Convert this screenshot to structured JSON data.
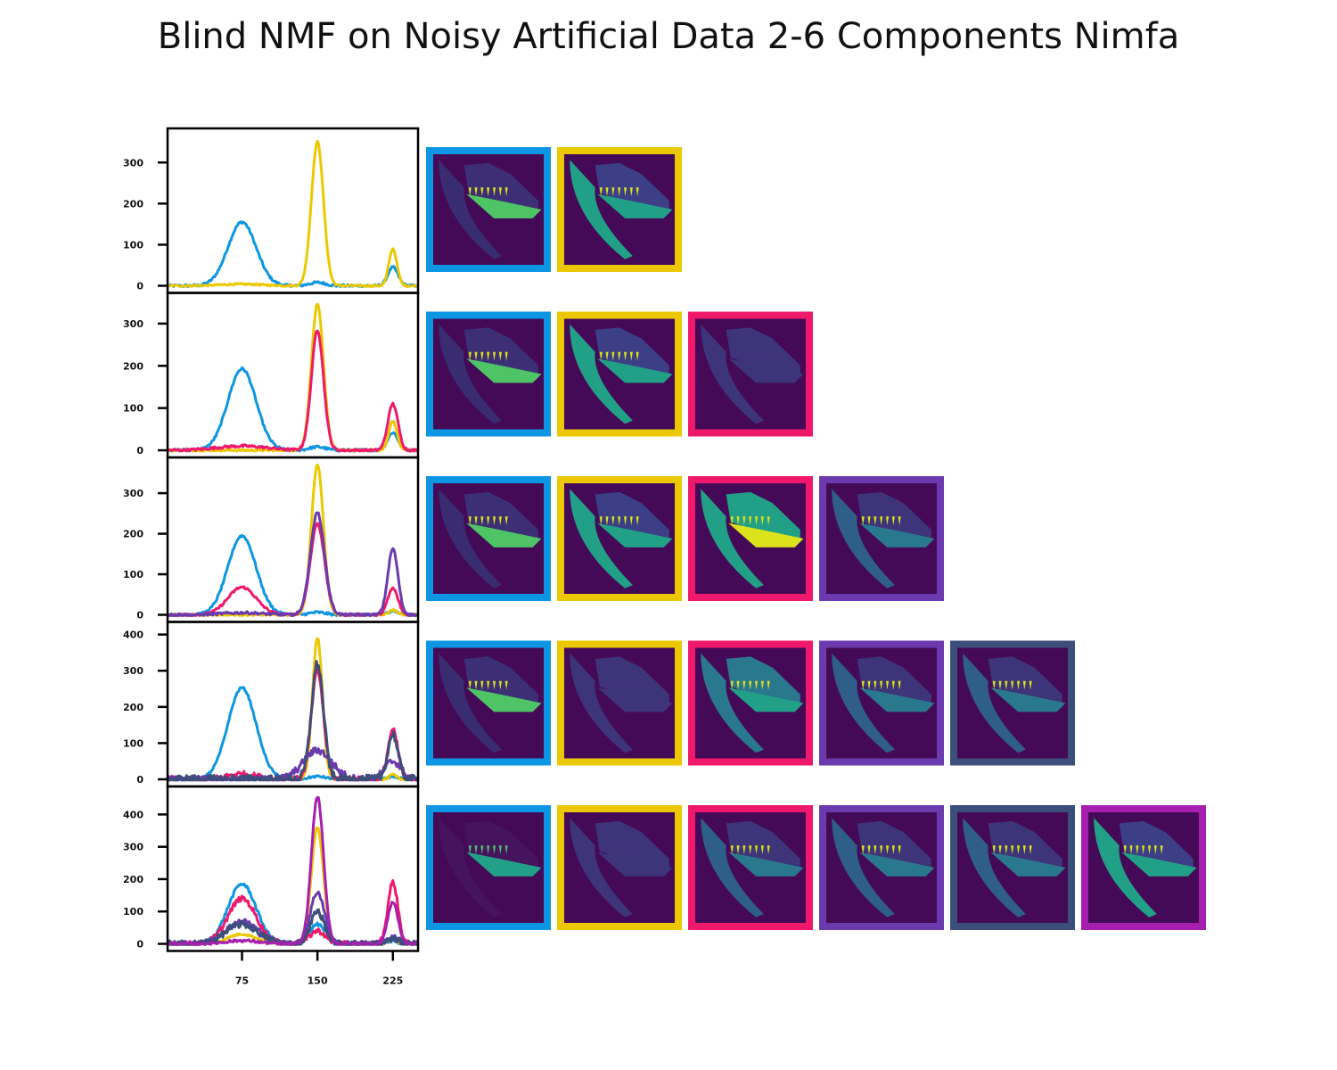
{
  "title": "Blind NMF on Noisy Artificial Data 2-6 Components Nimfa",
  "colors": {
    "blue": "#0d96e3",
    "yellow": "#ecc800",
    "red": "#f0186a",
    "purple": "#6a3aae",
    "slate": "#3c4e7a",
    "magenta": "#a61fb0",
    "bg_dark": "#440a57",
    "body_dim": "#3c2e72",
    "jaw_green": "#4ec466",
    "teal": "#22a087",
    "bright_yellow": "#dde31a"
  },
  "chart_data": [
    {
      "type": "line",
      "components": 2,
      "x_domain": [
        1,
        250
      ],
      "xticks": [
        75,
        150,
        225
      ],
      "ylim": [
        0,
        370
      ],
      "yticks": [
        0,
        100,
        200,
        300
      ],
      "series": [
        {
          "color": "blue",
          "peaks": [
            [
              75,
              155,
              14
            ],
            [
              150,
              8,
              8
            ],
            [
              225,
              45,
              5
            ]
          ],
          "noise": 3
        },
        {
          "color": "yellow",
          "peaks": [
            [
              75,
              4,
              20
            ],
            [
              150,
              350,
              6
            ],
            [
              225,
              90,
              4
            ]
          ],
          "noise": 2
        }
      ],
      "images": [
        {
          "border": "blue",
          "style": "jaw"
        },
        {
          "border": "yellow",
          "style": "body"
        }
      ]
    },
    {
      "type": "line",
      "components": 3,
      "x_domain": [
        1,
        250
      ],
      "ylim": [
        0,
        360
      ],
      "yticks": [
        0,
        100,
        200,
        300
      ],
      "series": [
        {
          "color": "blue",
          "peaks": [
            [
              75,
              193,
              14
            ],
            [
              150,
              8,
              8
            ],
            [
              225,
              42,
              5
            ]
          ],
          "noise": 3
        },
        {
          "color": "yellow",
          "peaks": [
            [
              150,
              345,
              6
            ],
            [
              225,
              70,
              4
            ]
          ],
          "noise": 2
        },
        {
          "color": "red",
          "peaks": [
            [
              75,
              10,
              25
            ],
            [
              150,
              285,
              6
            ],
            [
              225,
              110,
              5
            ]
          ],
          "noise": 3
        }
      ],
      "images": [
        {
          "border": "blue",
          "style": "jaw"
        },
        {
          "border": "yellow",
          "style": "body"
        },
        {
          "border": "red",
          "style": "dim"
        }
      ]
    },
    {
      "type": "line",
      "components": 4,
      "x_domain": [
        1,
        250
      ],
      "ylim": [
        0,
        375
      ],
      "yticks": [
        0,
        100,
        200,
        300
      ],
      "series": [
        {
          "color": "blue",
          "peaks": [
            [
              75,
              195,
              14
            ],
            [
              150,
              6,
              8
            ],
            [
              225,
              10,
              5
            ]
          ],
          "noise": 3
        },
        {
          "color": "yellow",
          "peaks": [
            [
              150,
              370,
              6
            ],
            [
              225,
              12,
              4
            ]
          ],
          "noise": 2
        },
        {
          "color": "red",
          "peaks": [
            [
              75,
              68,
              14
            ],
            [
              150,
              225,
              7
            ],
            [
              225,
              65,
              5
            ]
          ],
          "noise": 3
        },
        {
          "color": "purple",
          "peaks": [
            [
              75,
              5,
              20
            ],
            [
              150,
              252,
              7
            ],
            [
              225,
              163,
              5
            ]
          ],
          "noise": 3
        }
      ],
      "images": [
        {
          "border": "blue",
          "style": "jaw"
        },
        {
          "border": "yellow",
          "style": "body"
        },
        {
          "border": "red",
          "style": "full"
        },
        {
          "border": "purple",
          "style": "teeth"
        }
      ]
    },
    {
      "type": "line",
      "components": 5,
      "x_domain": [
        1,
        250
      ],
      "ylim": [
        0,
        420
      ],
      "yticks": [
        0,
        100,
        200,
        300,
        400
      ],
      "series": [
        {
          "color": "blue",
          "peaks": [
            [
              75,
              253,
              14
            ],
            [
              150,
              8,
              8
            ],
            [
              225,
              8,
              5
            ]
          ],
          "noise": 3
        },
        {
          "color": "yellow",
          "peaks": [
            [
              150,
              390,
              5
            ],
            [
              225,
              12,
              4
            ]
          ],
          "noise": 3
        },
        {
          "color": "red",
          "peaks": [
            [
              75,
              15,
              14
            ],
            [
              150,
              300,
              6
            ],
            [
              225,
              135,
              5
            ]
          ],
          "noise": 8
        },
        {
          "color": "purple",
          "peaks": [
            [
              150,
              80,
              14
            ],
            [
              225,
              50,
              8
            ]
          ],
          "noise": 10
        },
        {
          "color": "slate",
          "peaks": [
            [
              150,
              320,
              6
            ],
            [
              225,
              125,
              5
            ]
          ],
          "noise": 12
        }
      ],
      "images": [
        {
          "border": "blue",
          "style": "jaw"
        },
        {
          "border": "yellow",
          "style": "dim"
        },
        {
          "border": "red",
          "style": "head"
        },
        {
          "border": "purple",
          "style": "teeth"
        },
        {
          "border": "slate",
          "style": "teeth"
        }
      ]
    },
    {
      "type": "line",
      "components": 6,
      "x_domain": [
        1,
        250
      ],
      "ylim": [
        0,
        470
      ],
      "yticks": [
        0,
        100,
        200,
        300,
        400
      ],
      "series": [
        {
          "color": "blue",
          "peaks": [
            [
              75,
              185,
              14
            ],
            [
              150,
              60,
              8
            ],
            [
              225,
              10,
              5
            ]
          ],
          "noise": 5
        },
        {
          "color": "yellow",
          "peaks": [
            [
              75,
              30,
              14
            ],
            [
              150,
              360,
              6
            ],
            [
              225,
              15,
              4
            ]
          ],
          "noise": 3
        },
        {
          "color": "red",
          "peaks": [
            [
              75,
              140,
              14
            ],
            [
              150,
              40,
              8
            ],
            [
              225,
              190,
              5
            ]
          ],
          "noise": 8
        },
        {
          "color": "purple",
          "peaks": [
            [
              75,
              70,
              16
            ],
            [
              150,
              160,
              7
            ],
            [
              225,
              20,
              6
            ]
          ],
          "noise": 8
        },
        {
          "color": "slate",
          "peaks": [
            [
              75,
              60,
              16
            ],
            [
              150,
              100,
              7
            ],
            [
              225,
              15,
              6
            ]
          ],
          "noise": 10
        },
        {
          "color": "magenta",
          "peaks": [
            [
              75,
              10,
              16
            ],
            [
              150,
              455,
              6
            ],
            [
              225,
              130,
              5
            ]
          ],
          "noise": 4
        }
      ],
      "images": [
        {
          "border": "blue",
          "style": "jaw_teal"
        },
        {
          "border": "yellow",
          "style": "dim"
        },
        {
          "border": "red",
          "style": "teeth"
        },
        {
          "border": "purple",
          "style": "teeth"
        },
        {
          "border": "slate",
          "style": "teeth"
        },
        {
          "border": "magenta",
          "style": "body"
        }
      ]
    }
  ]
}
